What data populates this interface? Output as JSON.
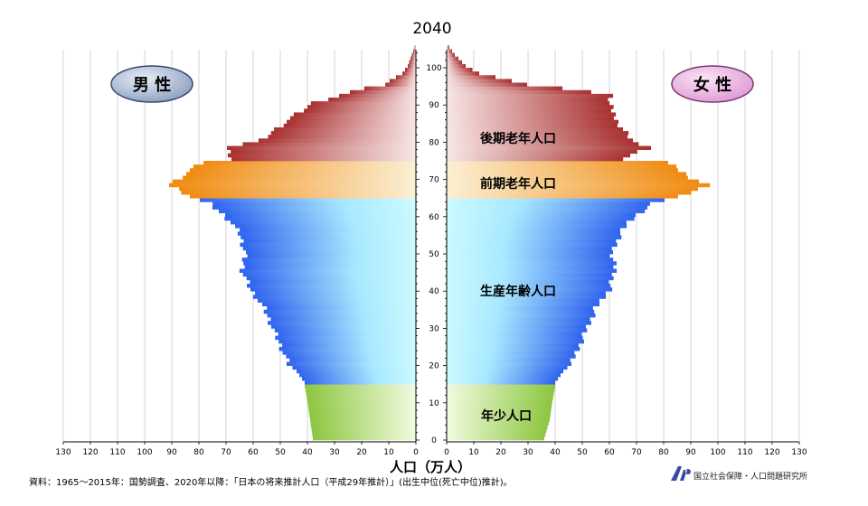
{
  "chart_data": {
    "type": "bar",
    "orientation": "population-pyramid",
    "title": "2040",
    "xlabel": "人口（万人）",
    "xlim": [
      0,
      130
    ],
    "ylim": [
      0,
      105
    ],
    "x_ticks": [
      0,
      10,
      20,
      30,
      40,
      50,
      60,
      70,
      80,
      90,
      100,
      110,
      120,
      130
    ],
    "y_ticks": [
      0,
      10,
      20,
      30,
      40,
      50,
      60,
      70,
      80,
      90,
      100
    ],
    "grid": "vertical",
    "panel_labels": {
      "male": "男 性",
      "female": "女 性"
    },
    "zone_labels": [
      "後期老年人口",
      "前期老年人口",
      "生産年齢人口",
      "年少人口"
    ],
    "zones": [
      {
        "label": "年少人口",
        "age_from": 0,
        "age_to": 14,
        "color": "#8cc63f"
      },
      {
        "label": "生産年齢人口",
        "age_from": 15,
        "age_to": 64,
        "color": "#3a6df0"
      },
      {
        "label": "前期老年人口",
        "age_from": 65,
        "age_to": 74,
        "color": "#f08c1e"
      },
      {
        "label": "後期老年人口",
        "age_from": 75,
        "age_to": 105,
        "color": "#b03a3a"
      }
    ],
    "male_anchors": [
      [
        0,
        38
      ],
      [
        5,
        39
      ],
      [
        10,
        40
      ],
      [
        14,
        41
      ],
      [
        15,
        41
      ],
      [
        18,
        44
      ],
      [
        20,
        47
      ],
      [
        25,
        50
      ],
      [
        30,
        53
      ],
      [
        35,
        56
      ],
      [
        40,
        61
      ],
      [
        45,
        64
      ],
      [
        50,
        63
      ],
      [
        55,
        65
      ],
      [
        58,
        68
      ],
      [
        60,
        71
      ],
      [
        63,
        76
      ],
      [
        64,
        80
      ],
      [
        65,
        83
      ],
      [
        67,
        88
      ],
      [
        68,
        91
      ],
      [
        70,
        87
      ],
      [
        72,
        83
      ],
      [
        74,
        79
      ],
      [
        75,
        68
      ],
      [
        78,
        70
      ],
      [
        80,
        57
      ],
      [
        85,
        48
      ],
      [
        90,
        38
      ],
      [
        93,
        24
      ],
      [
        95,
        12
      ],
      [
        98,
        5
      ],
      [
        100,
        3
      ],
      [
        103,
        1.5
      ],
      [
        105,
        0.5
      ]
    ],
    "female_anchors": [
      [
        0,
        36
      ],
      [
        5,
        38
      ],
      [
        10,
        39
      ],
      [
        14,
        40
      ],
      [
        15,
        40
      ],
      [
        18,
        43
      ],
      [
        20,
        46
      ],
      [
        25,
        49
      ],
      [
        30,
        52
      ],
      [
        35,
        55
      ],
      [
        40,
        60
      ],
      [
        45,
        62
      ],
      [
        50,
        61
      ],
      [
        55,
        64
      ],
      [
        58,
        67
      ],
      [
        60,
        70
      ],
      [
        63,
        76
      ],
      [
        64,
        80
      ],
      [
        65,
        86
      ],
      [
        67,
        93
      ],
      [
        68,
        96
      ],
      [
        70,
        90
      ],
      [
        72,
        86
      ],
      [
        74,
        82
      ],
      [
        75,
        64
      ],
      [
        78,
        75
      ],
      [
        80,
        68
      ],
      [
        85,
        63
      ],
      [
        88,
        61
      ],
      [
        90,
        60
      ],
      [
        92,
        61
      ],
      [
        93,
        54
      ],
      [
        95,
        30
      ],
      [
        98,
        12
      ],
      [
        100,
        7
      ],
      [
        103,
        3
      ],
      [
        105,
        1
      ]
    ]
  },
  "source_note": "資料：1965〜2015年：国勢調査、2020年以降：「日本の将来推計人口（平成29年推計）」(出生中位(死亡中位)推計)。",
  "logo_text": "国立社会保障・人口問題研究所"
}
